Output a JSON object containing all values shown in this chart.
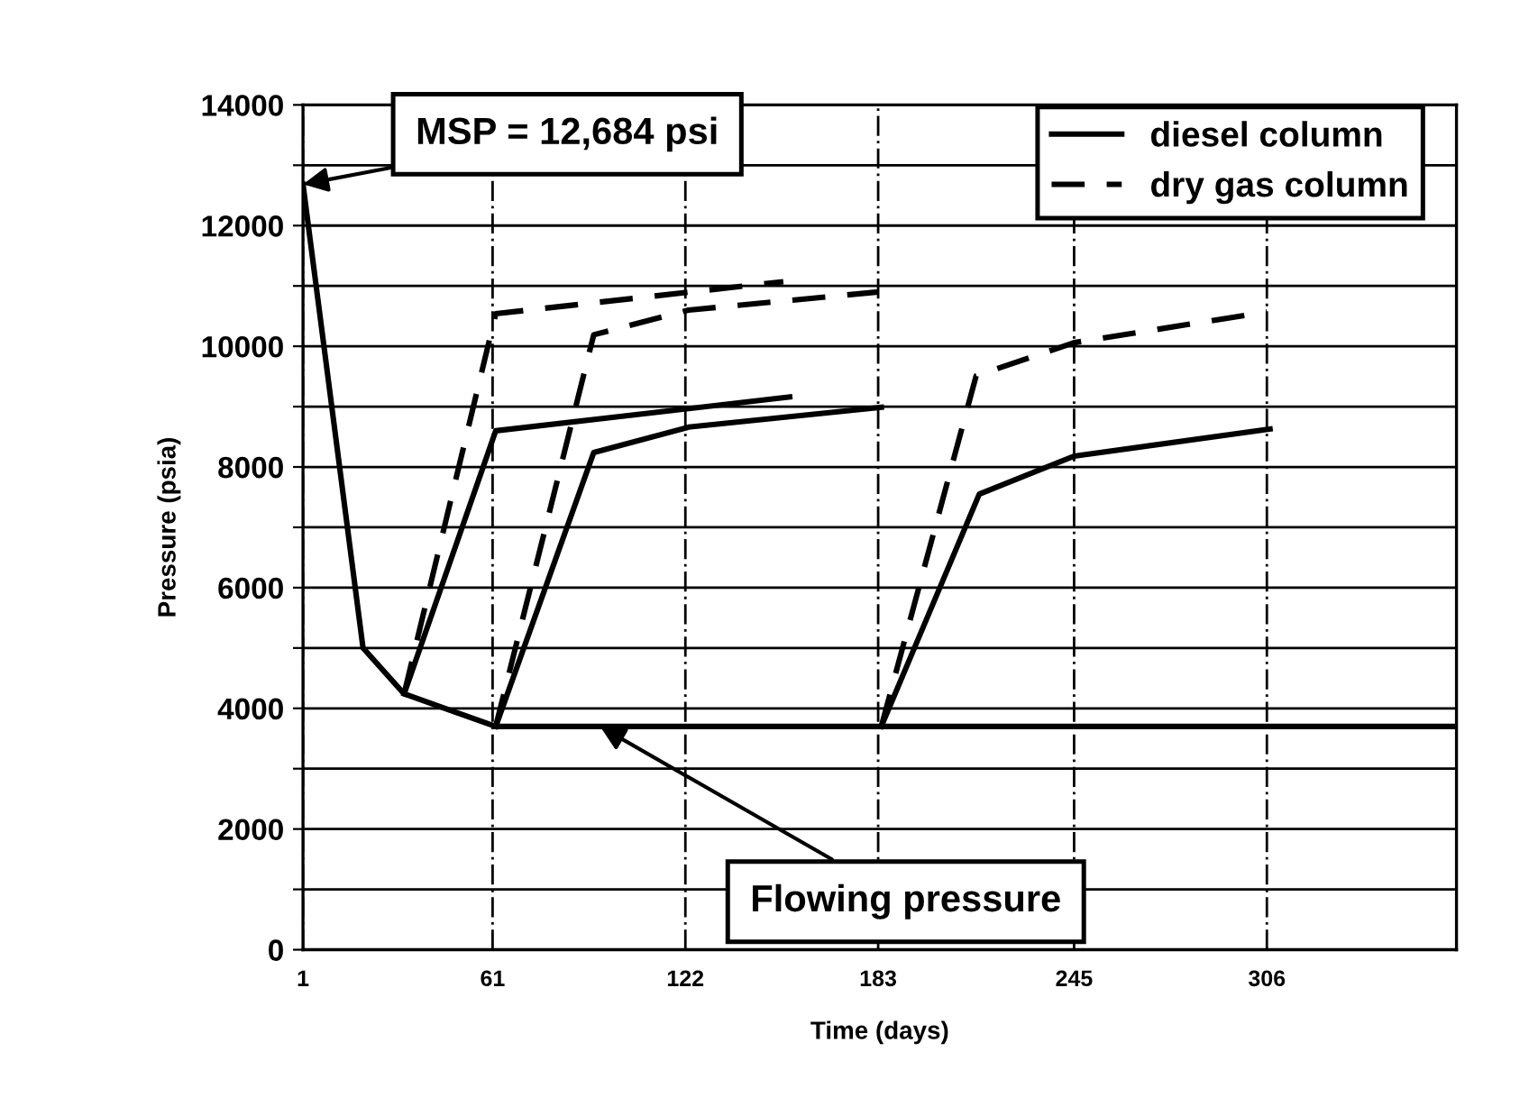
{
  "chart_data": {
    "type": "line",
    "xlabel": "Time (days)",
    "ylabel": "Pressure (psia)",
    "xlim": [
      1,
      366
    ],
    "xticks": [
      1,
      61,
      122,
      183,
      245,
      306
    ],
    "ylim": [
      0,
      14000
    ],
    "yticks": [
      0,
      {
        "value": 1000,
        "label": null
      },
      2000,
      {
        "value": 3000,
        "label": null
      },
      4000,
      {
        "value": 5000,
        "label": null
      },
      6000,
      {
        "value": 7000,
        "label": null
      },
      8000,
      {
        "value": 9000,
        "label": null
      },
      10000,
      {
        "value": 11000,
        "label": null
      },
      12000,
      {
        "value": 13000,
        "label": null
      },
      14000
    ],
    "grid": true,
    "legend": "top right",
    "marker": "none",
    "series": [
      {
        "color": "#000000",
        "line_style": "solid",
        "x": [
          1,
          20,
          33,
          62,
          366
        ],
        "values": [
          12684,
          5000,
          4240,
          3700,
          3700
        ]
      },
      {
        "name": "diesel column",
        "color": "#000000",
        "line_style": "solid",
        "x": [
          33,
          62,
          155
        ],
        "values": [
          4240,
          8600,
          9160
        ]
      },
      {
        "name": "dry gas column",
        "color": "#000000",
        "line_style": "dashed",
        "x": [
          33,
          62,
          153
        ],
        "values": [
          4240,
          10540,
          11070
        ]
      },
      {
        "color": "#000000",
        "line_style": "solid",
        "x": [
          62,
          93,
          123,
          184
        ],
        "values": [
          3700,
          8240,
          8660,
          8990
        ]
      },
      {
        "color": "#000000",
        "line_style": "dashed",
        "x": [
          62,
          93,
          123,
          183
        ],
        "values": [
          3700,
          10190,
          10600,
          10900
        ]
      },
      {
        "color": "#000000",
        "line_style": "solid",
        "x": [
          184,
          215,
          245,
          307
        ],
        "values": [
          3700,
          7550,
          8180,
          8630
        ]
      },
      {
        "color": "#000000",
        "line_style": "dashed",
        "x": [
          184,
          214,
          245,
          306
        ],
        "values": [
          3700,
          9510,
          10060,
          10570
        ]
      }
    ],
    "annotations": [
      {
        "text": "MSP = 12,684 psi",
        "x": 1,
        "y": 12684
      },
      {
        "text": "Flowing pressure",
        "x": 95,
        "y": 3700
      }
    ]
  }
}
